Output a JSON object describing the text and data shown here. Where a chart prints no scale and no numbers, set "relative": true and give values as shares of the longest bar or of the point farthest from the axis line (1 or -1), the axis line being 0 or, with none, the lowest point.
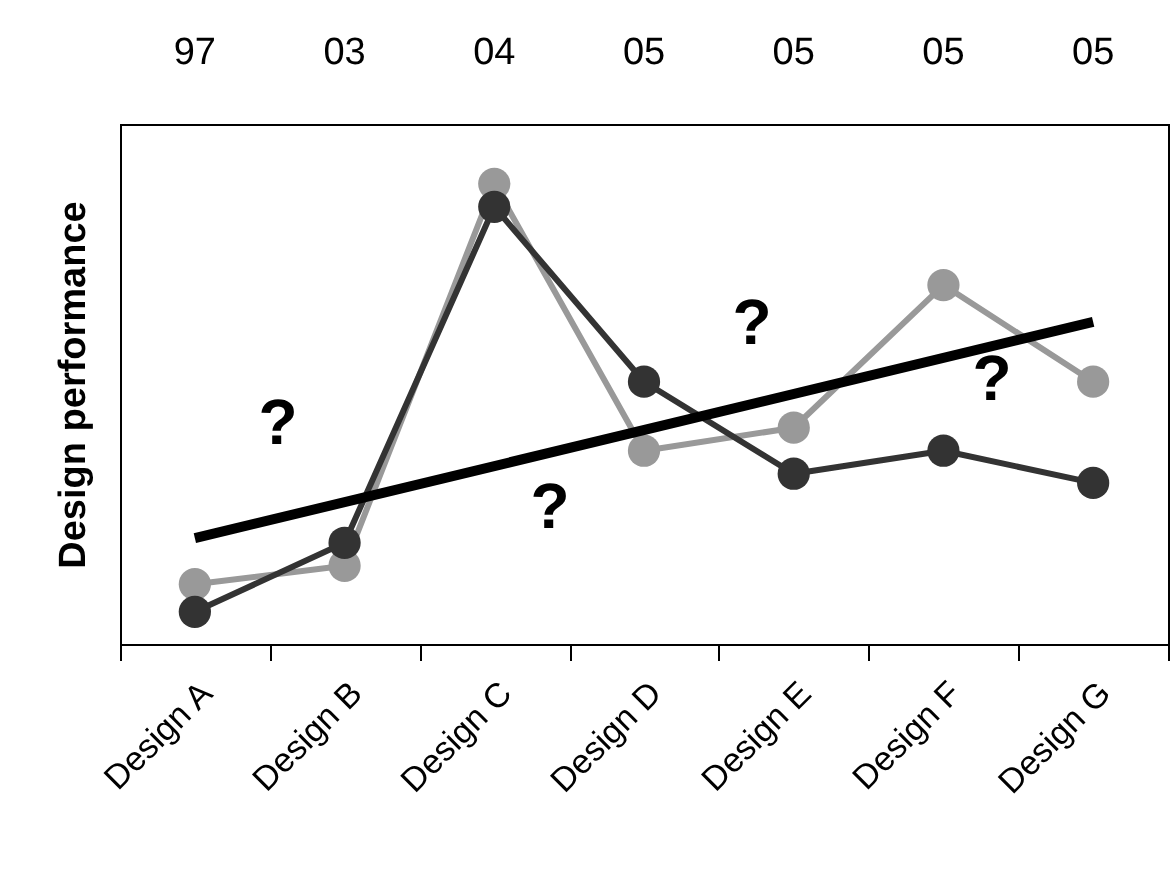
{
  "chart_data": {
    "type": "line",
    "ylabel": "Design performance",
    "relative": true,
    "marker": "circle",
    "categories": [
      "Design A",
      "Design B",
      "Design C",
      "Design D",
      "Design E",
      "Design F",
      "Design G"
    ],
    "annotations": [
      "97",
      "03",
      "04",
      "05",
      "05",
      "05",
      "05",
      "?",
      "?",
      "?",
      "?"
    ],
    "series": [
      {
        "color": "#999999",
        "values": [
          0.13,
          0.17,
          1.0,
          0.42,
          0.47,
          0.78,
          0.57
        ]
      },
      {
        "color": "#333333",
        "values": [
          0.07,
          0.22,
          0.95,
          0.57,
          0.37,
          0.42,
          0.35
        ]
      },
      {
        "type": "line",
        "marker": "none",
        "color": "#000000",
        "x": [
          "Design A",
          "Design G"
        ],
        "values": [
          0.23,
          0.7
        ]
      }
    ]
  }
}
